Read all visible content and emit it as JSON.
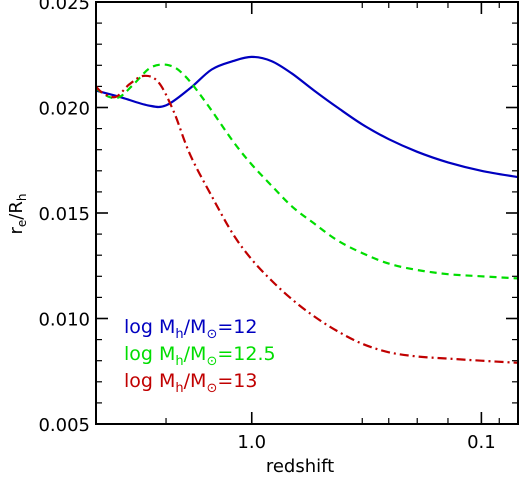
{
  "chart_data": {
    "type": "line",
    "xlabel": "redshift",
    "ylabel_main": "r",
    "ylabel_sub1": "e",
    "ylabel_mid": "/R",
    "ylabel_sub2": "h",
    "x_scale": "log(1+z), redshift axis decreasing to the right",
    "xlim": [
      2.0,
      0.0
    ],
    "ylim": [
      0.005,
      0.025
    ],
    "x_ticks": [
      {
        "value": 1.0,
        "label": "1.0"
      },
      {
        "value": 0.1,
        "label": "0.1"
      }
    ],
    "y_ticks": [
      {
        "value": 0.005,
        "label": "0.005"
      },
      {
        "value": 0.01,
        "label": "0.010"
      },
      {
        "value": 0.015,
        "label": "0.015"
      },
      {
        "value": 0.02,
        "label": "0.020"
      },
      {
        "value": 0.025,
        "label": "0.025"
      }
    ],
    "series": [
      {
        "name": "log Mh/M⊙=12",
        "legend_prefix": "log M",
        "legend_sub": "h",
        "legend_mid": "/M",
        "legend_suffix": "=12",
        "color": "#0000c0",
        "dash": "solid",
        "points": [
          [
            2.0,
            0.0208
          ],
          [
            1.82,
            0.0205
          ],
          [
            1.62,
            0.0201
          ],
          [
            1.5,
            0.0201
          ],
          [
            1.35,
            0.0209
          ],
          [
            1.22,
            0.0218
          ],
          [
            1.1,
            0.0222
          ],
          [
            1.0,
            0.0224
          ],
          [
            0.9,
            0.0222
          ],
          [
            0.8,
            0.0216
          ],
          [
            0.7,
            0.0208
          ],
          [
            0.6,
            0.02
          ],
          [
            0.5,
            0.0192
          ],
          [
            0.4,
            0.0185
          ],
          [
            0.3,
            0.0179
          ],
          [
            0.2,
            0.0174
          ],
          [
            0.1,
            0.017
          ],
          [
            0.0,
            0.0167
          ]
        ]
      },
      {
        "name": "log Mh/M⊙=12.5",
        "legend_prefix": "log M",
        "legend_sub": "h",
        "legend_mid": "/M",
        "legend_suffix": "=12.5",
        "color": "#00dd00",
        "dash": "dashed",
        "points": [
          [
            2.0,
            0.0209
          ],
          [
            1.9,
            0.0205
          ],
          [
            1.82,
            0.0205
          ],
          [
            1.72,
            0.0211
          ],
          [
            1.6,
            0.0219
          ],
          [
            1.48,
            0.022
          ],
          [
            1.38,
            0.0215
          ],
          [
            1.25,
            0.0202
          ],
          [
            1.1,
            0.0184
          ],
          [
            1.0,
            0.0173
          ],
          [
            0.9,
            0.0163
          ],
          [
            0.8,
            0.0153
          ],
          [
            0.7,
            0.0145
          ],
          [
            0.6,
            0.0137
          ],
          [
            0.5,
            0.0131
          ],
          [
            0.4,
            0.0126
          ],
          [
            0.3,
            0.0123
          ],
          [
            0.2,
            0.0121
          ],
          [
            0.1,
            0.012
          ],
          [
            0.0,
            0.0119
          ]
        ]
      },
      {
        "name": "log Mh/M⊙=13",
        "legend_prefix": "log M",
        "legend_sub": "h",
        "legend_mid": "/M",
        "legend_suffix": "=13",
        "color": "#c00000",
        "dash": "dashdot",
        "points": [
          [
            2.0,
            0.021
          ],
          [
            1.95,
            0.0207
          ],
          [
            1.85,
            0.0205
          ],
          [
            1.75,
            0.0211
          ],
          [
            1.65,
            0.0215
          ],
          [
            1.55,
            0.0212
          ],
          [
            1.45,
            0.0198
          ],
          [
            1.35,
            0.0178
          ],
          [
            1.22,
            0.0158
          ],
          [
            1.1,
            0.014
          ],
          [
            1.0,
            0.0128
          ],
          [
            0.9,
            0.0118
          ],
          [
            0.8,
            0.0109
          ],
          [
            0.7,
            0.0101
          ],
          [
            0.6,
            0.0094
          ],
          [
            0.5,
            0.0088
          ],
          [
            0.4,
            0.0084
          ],
          [
            0.3,
            0.0082
          ],
          [
            0.2,
            0.0081
          ],
          [
            0.1,
            0.008
          ],
          [
            0.0,
            0.0079
          ]
        ]
      }
    ]
  }
}
